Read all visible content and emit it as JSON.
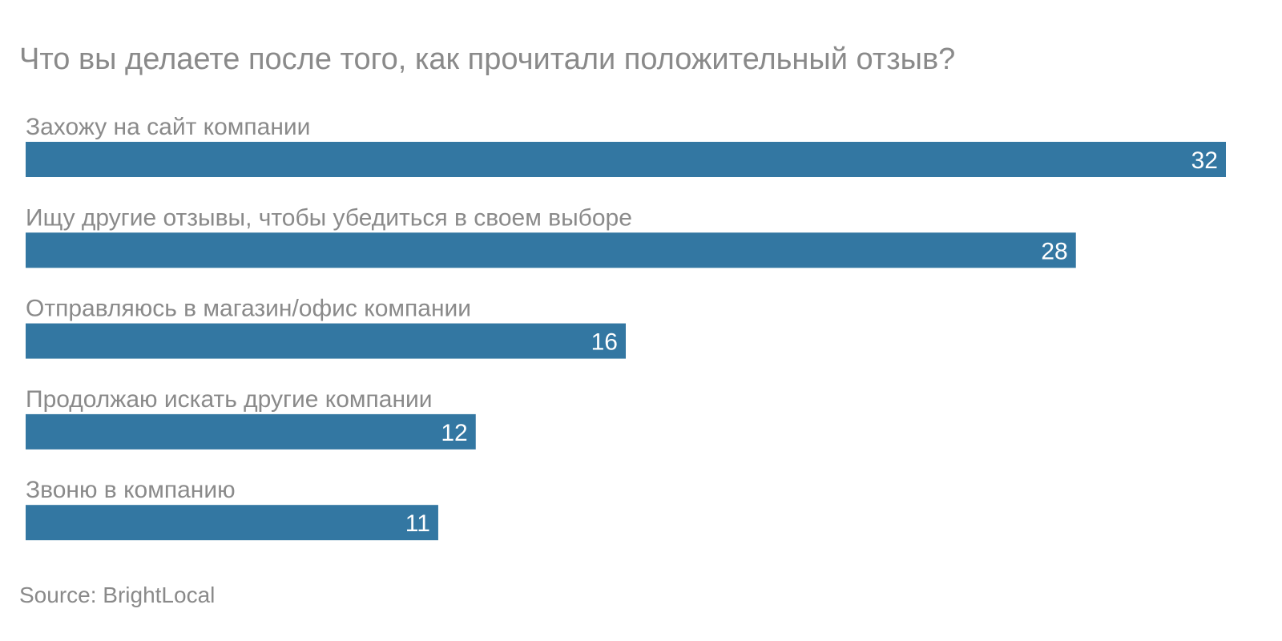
{
  "chart_data": {
    "type": "bar",
    "orientation": "horizontal",
    "title": "Что вы делаете после того, как прочитали положительный отзыв?",
    "categories": [
      "Захожу на сайт компании",
      "Ищу другие отзывы, чтобы убедиться в своем выборе",
      "Отправляюсь в магазин/офис компании",
      "Продолжаю искать другие компании",
      "Звоню в компанию"
    ],
    "values": [
      32,
      28,
      16,
      12,
      11
    ],
    "xlim": [
      0,
      32
    ],
    "grid": false,
    "legend": "none",
    "bar_color": "#3377a2",
    "source": "Source: BrightLocal"
  }
}
